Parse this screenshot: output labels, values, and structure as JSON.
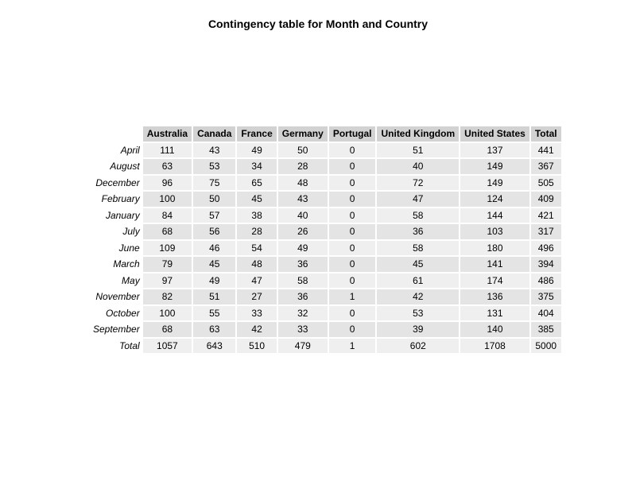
{
  "chart_data": {
    "type": "table",
    "title": "Contingency table for Month and Country",
    "columns": [
      "Australia",
      "Canada",
      "France",
      "Germany",
      "Portugal",
      "United Kingdom",
      "United States",
      "Total"
    ],
    "rows": [
      {
        "label": "April",
        "values": [
          "111",
          "43",
          "49",
          "50",
          "0",
          "51",
          "137",
          "441"
        ]
      },
      {
        "label": "August",
        "values": [
          "63",
          "53",
          "34",
          "28",
          "0",
          "40",
          "149",
          "367"
        ]
      },
      {
        "label": "December",
        "values": [
          "96",
          "75",
          "65",
          "48",
          "0",
          "72",
          "149",
          "505"
        ]
      },
      {
        "label": "February",
        "values": [
          "100",
          "50",
          "45",
          "43",
          "0",
          "47",
          "124",
          "409"
        ]
      },
      {
        "label": "January",
        "values": [
          "84",
          "57",
          "38",
          "40",
          "0",
          "58",
          "144",
          "421"
        ]
      },
      {
        "label": "July",
        "values": [
          "68",
          "56",
          "28",
          "26",
          "0",
          "36",
          "103",
          "317"
        ]
      },
      {
        "label": "June",
        "values": [
          "109",
          "46",
          "54",
          "49",
          "0",
          "58",
          "180",
          "496"
        ]
      },
      {
        "label": "March",
        "values": [
          "79",
          "45",
          "48",
          "36",
          "0",
          "45",
          "141",
          "394"
        ]
      },
      {
        "label": "May",
        "values": [
          "97",
          "49",
          "47",
          "58",
          "0",
          "61",
          "174",
          "486"
        ]
      },
      {
        "label": "November",
        "values": [
          "82",
          "51",
          "27",
          "36",
          "1",
          "42",
          "136",
          "375"
        ]
      },
      {
        "label": "October",
        "values": [
          "100",
          "55",
          "33",
          "32",
          "0",
          "53",
          "131",
          "404"
        ]
      },
      {
        "label": "September",
        "values": [
          "68",
          "63",
          "42",
          "33",
          "0",
          "39",
          "140",
          "385"
        ]
      },
      {
        "label": "Total",
        "values": [
          "1057",
          "643",
          "510",
          "479",
          "1",
          "602",
          "1708",
          "5000"
        ]
      }
    ]
  },
  "colors": {
    "header_background": "#d2d2d2",
    "row_background_light": "#efefef",
    "row_background_dark": "#e4e4e4"
  }
}
